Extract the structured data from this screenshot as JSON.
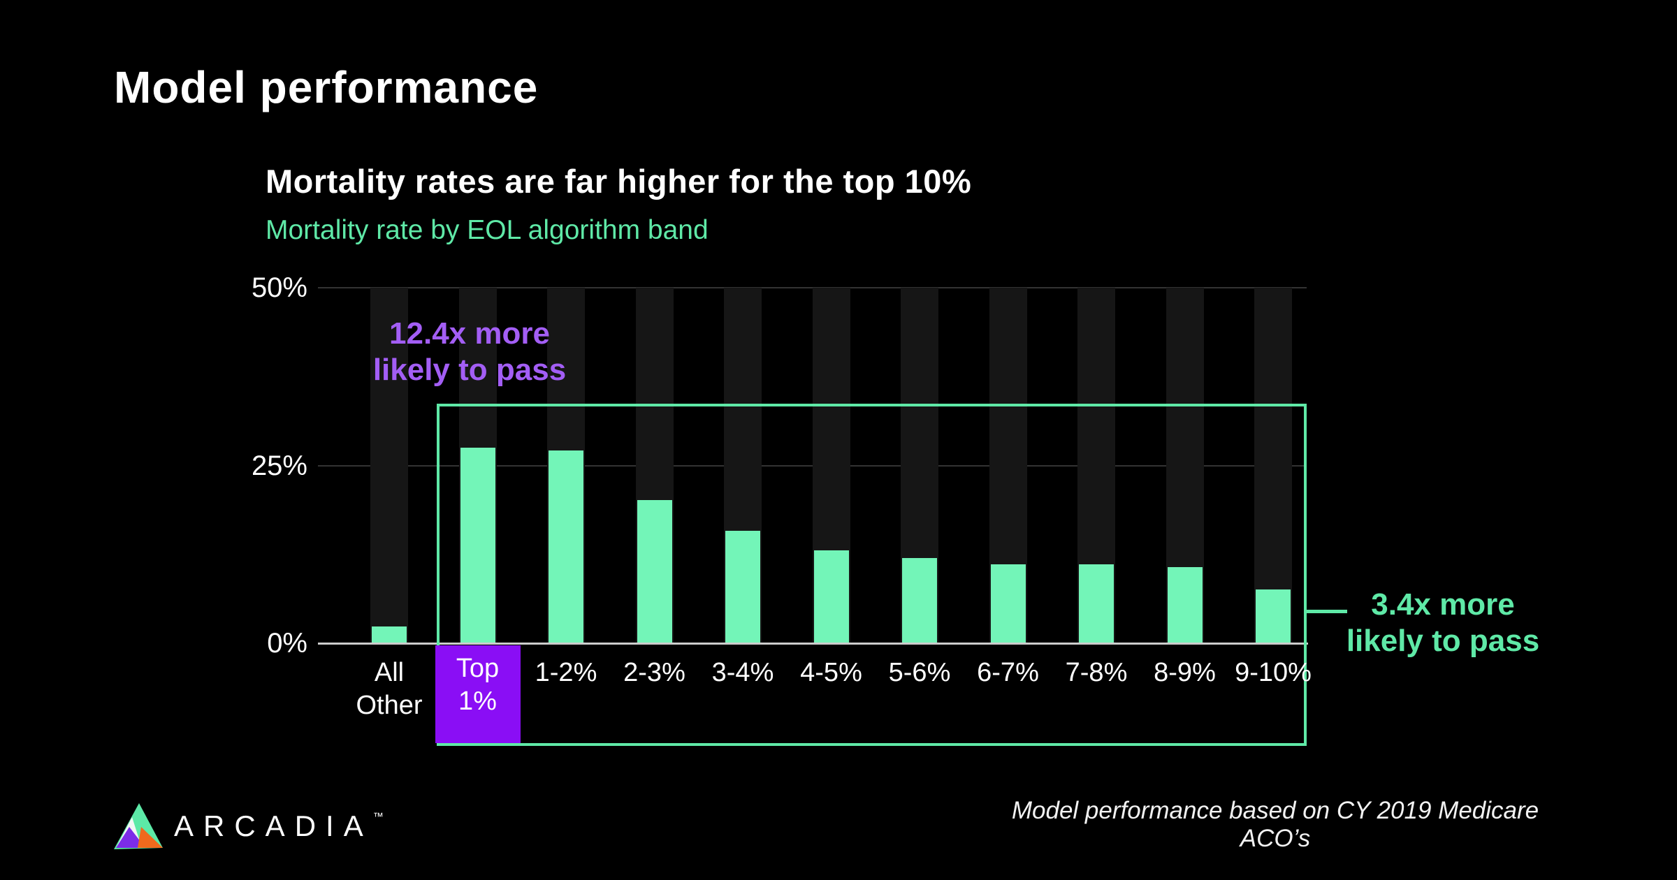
{
  "header": {
    "title": "Model performance"
  },
  "chart": {
    "title": "Mortality rates are far higher for the top 10%",
    "subtitle": "Mortality rate by EOL algorithm band"
  },
  "chart_data": {
    "type": "bar",
    "title": "Mortality rates are far higher for the top 10%",
    "subtitle": "Mortality rate by EOL algorithm band",
    "categories": [
      "All Other",
      "Top 1%",
      "1-2%",
      "2-3%",
      "3-4%",
      "4-5%",
      "5-6%",
      "6-7%",
      "7-8%",
      "8-9%",
      "9-10%"
    ],
    "values": [
      2.3,
      27.5,
      27.1,
      20.1,
      15.7,
      13.0,
      11.9,
      11.0,
      11.0,
      10.6,
      7.5
    ],
    "unit": "%",
    "ylabel": "Mortality rate",
    "ylim": [
      0,
      50
    ],
    "yticks": [
      "0%",
      "25%",
      "50%"
    ],
    "grid": "horizontal",
    "legend": "none",
    "highlight_index": 1,
    "boxed_range": [
      "Top 1%",
      "9-10%"
    ]
  },
  "annotations": {
    "purple": {
      "line1": "12.4x more",
      "line2": "likely to pass"
    },
    "green": {
      "line1": "3.4x more",
      "line2": "likely to pass"
    }
  },
  "footer": {
    "note": "Model performance based on CY 2019 Medicare ACO’s",
    "logo_text": "ARCADIA",
    "logo_tm": "™"
  },
  "colors": {
    "accent_green": "#5fe9a7",
    "bar_green": "#73f5b8",
    "purple_text": "#a35ef5",
    "purple_box": "#8a0ef5",
    "stripe": "#161616",
    "grid_line": "#333333",
    "baseline": "#cccccc",
    "background": "#000000",
    "logo_mint": "#5ce9a7",
    "logo_purple": "#7c2ce8",
    "logo_orange": "#f06a1d",
    "logo_white": "#f3f7f4"
  }
}
